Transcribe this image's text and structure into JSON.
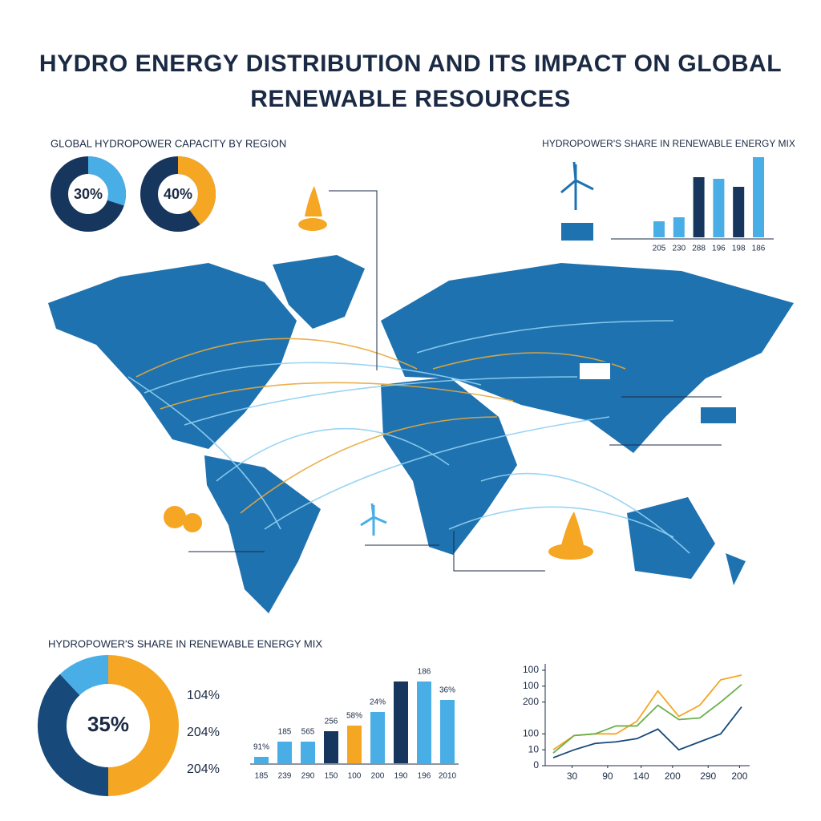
{
  "title": "HYDRO ENERGY DISTRIBUTION AND ITS IMPACT ON GLOBAL RENEWABLE RESOURCES",
  "chart_data": [
    {
      "type": "donut",
      "title": "GLOBAL HYDROPOWER CAPACITY BY REGION",
      "values": [
        30,
        40
      ],
      "value_labels": [
        "30%",
        "40%"
      ],
      "colors": [
        "#4aaee6",
        "#f5a623"
      ],
      "track_color": "#17365d"
    },
    {
      "type": "bar",
      "title": "HYDROPOWER'S SHARE IN RENEWABLE ENERGY MIX",
      "categories": [
        "205",
        "230",
        "288",
        "196",
        "198",
        "186"
      ],
      "values": [
        20,
        25,
        75,
        73,
        63,
        100
      ],
      "colors": [
        "#4aaee6",
        "#4aaee6",
        "#17365d",
        "#4aaee6",
        "#17365d",
        "#4aaee6"
      ]
    },
    {
      "type": "ring",
      "title": "HYDROPOWER'S SHARE IN RENEWABLE ENERGY MIX",
      "center_label": "35%",
      "labels": [
        "104%",
        "204%",
        "204%"
      ],
      "values": [
        50,
        38,
        12
      ],
      "colors": [
        "#f5a623",
        "#17497a",
        "#4aaee6"
      ]
    },
    {
      "type": "bar",
      "categories": [
        "185",
        "239",
        "290",
        "150",
        "100",
        "200",
        "190",
        "196",
        "2010"
      ],
      "values": [
        8,
        27,
        27,
        40,
        47,
        64,
        102,
        102,
        79
      ],
      "bar_labels": [
        "91%",
        "185",
        "565",
        "256",
        "58%",
        "24%",
        null,
        "186",
        "36%"
      ],
      "colors": [
        "#4aaee6",
        "#4aaee6",
        "#4aaee6",
        "#17365d",
        "#f5a623",
        "#4aaee6",
        "#17365d",
        "#4aaee6",
        "#4aaee6"
      ]
    },
    {
      "type": "line",
      "x": [
        0,
        1,
        2,
        3,
        4,
        5,
        6,
        7,
        8,
        9
      ],
      "xlim": [
        0,
        9
      ],
      "ylim": [
        0,
        6
      ],
      "xticks": [
        {
          "value": 0.9,
          "label": "30"
        },
        {
          "value": 2.6,
          "label": "90"
        },
        {
          "value": 4.2,
          "label": "140"
        },
        {
          "value": 5.7,
          "label": "200"
        },
        {
          "value": 7.4,
          "label": "290"
        },
        {
          "value": 8.9,
          "label": "200"
        }
      ],
      "yticks": [
        0,
        {
          "value": 1,
          "label": "10"
        },
        {
          "value": 2,
          "label": "100"
        },
        {
          "value": 4,
          "label": "200"
        },
        {
          "value": 5,
          "label": "100"
        },
        {
          "value": 6,
          "label": "100"
        }
      ],
      "series": [
        {
          "color": "#f5a623",
          "values": [
            1.0,
            1.9,
            2.0,
            2.0,
            2.8,
            4.7,
            3.1,
            3.8,
            5.4,
            5.7
          ]
        },
        {
          "color": "#6ab04c",
          "values": [
            0.8,
            1.9,
            2.0,
            2.5,
            2.5,
            3.8,
            2.9,
            3.0,
            4.0,
            5.1
          ]
        },
        {
          "color": "#17497a",
          "values": [
            0.5,
            1.0,
            1.4,
            1.5,
            1.7,
            2.3,
            1.0,
            1.5,
            2.0,
            3.7
          ]
        }
      ]
    }
  ]
}
